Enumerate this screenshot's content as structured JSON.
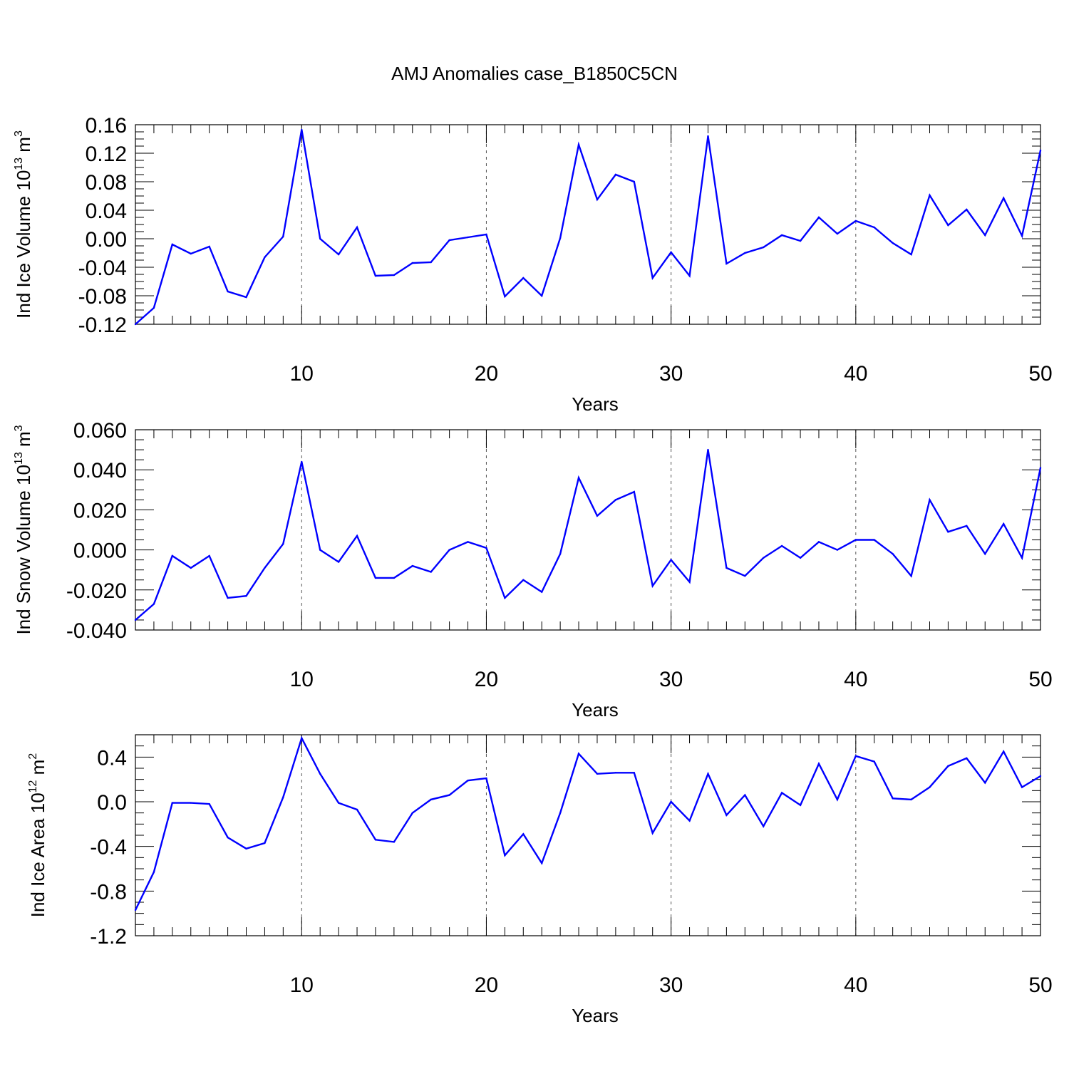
{
  "figure": {
    "title": "AMJ Anomalies case_B1850C5CN",
    "line_color": "#0000ff",
    "grid_color": "#555555"
  },
  "chart_data": [
    {
      "type": "line",
      "xlabel": "Years",
      "ylabel": {
        "prefix": "Ind Ice Volume 10",
        "exponent": "13",
        "unit": " m",
        "unit_exponent": "3"
      },
      "xlim": [
        1,
        50
      ],
      "ylim": [
        -0.12,
        0.16
      ],
      "yticks": [
        "0.16",
        "0.12",
        "0.08",
        "0.04",
        "0.00",
        "-0.04",
        "-0.08",
        "-0.12"
      ],
      "ytick_values": [
        0.16,
        0.12,
        0.08,
        0.04,
        0.0,
        -0.04,
        -0.08,
        -0.12
      ],
      "xticks": [
        "10",
        "20",
        "30",
        "40",
        "50"
      ],
      "xtick_values": [
        10,
        20,
        30,
        40,
        50
      ],
      "grid": "vertical-dashed",
      "x": [
        1,
        2,
        3,
        4,
        5,
        6,
        7,
        8,
        9,
        10,
        11,
        12,
        13,
        14,
        15,
        16,
        17,
        18,
        19,
        20,
        21,
        22,
        23,
        24,
        25,
        26,
        27,
        28,
        29,
        30,
        31,
        32,
        33,
        34,
        35,
        36,
        37,
        38,
        39,
        40,
        41,
        42,
        43,
        44,
        45,
        46,
        47,
        48,
        49,
        50
      ],
      "values": [
        -0.12,
        -0.097,
        -0.008,
        -0.021,
        -0.011,
        -0.074,
        -0.082,
        -0.026,
        0.003,
        0.153,
        0.0,
        -0.022,
        0.016,
        -0.052,
        -0.051,
        -0.034,
        -0.033,
        -0.002,
        0.002,
        0.006,
        -0.081,
        -0.055,
        -0.08,
        0.001,
        0.132,
        0.055,
        0.09,
        0.08,
        -0.055,
        -0.019,
        -0.052,
        0.144,
        -0.035,
        -0.02,
        -0.012,
        0.005,
        -0.003,
        0.03,
        0.007,
        0.025,
        0.016,
        -0.006,
        -0.022,
        0.061,
        0.019,
        0.041,
        0.005,
        0.057,
        0.004,
        0.124
      ]
    },
    {
      "type": "line",
      "xlabel": "Years",
      "ylabel": {
        "prefix": "Ind Snow Volume 10",
        "exponent": "13",
        "unit": " m",
        "unit_exponent": "3"
      },
      "xlim": [
        1,
        50
      ],
      "ylim": [
        -0.04,
        0.06
      ],
      "yticks": [
        "0.060",
        "0.040",
        "0.020",
        "0.000",
        "-0.020",
        "-0.040"
      ],
      "ytick_values": [
        0.06,
        0.04,
        0.02,
        0.0,
        -0.02,
        -0.04
      ],
      "xticks": [
        "10",
        "20",
        "30",
        "40",
        "50"
      ],
      "xtick_values": [
        10,
        20,
        30,
        40,
        50
      ],
      "grid": "vertical-dashed",
      "x": [
        1,
        2,
        3,
        4,
        5,
        6,
        7,
        8,
        9,
        10,
        11,
        12,
        13,
        14,
        15,
        16,
        17,
        18,
        19,
        20,
        21,
        22,
        23,
        24,
        25,
        26,
        27,
        28,
        29,
        30,
        31,
        32,
        33,
        34,
        35,
        36,
        37,
        38,
        39,
        40,
        41,
        42,
        43,
        44,
        45,
        46,
        47,
        48,
        49,
        50
      ],
      "values": [
        -0.035,
        -0.027,
        -0.003,
        -0.009,
        -0.003,
        -0.024,
        -0.023,
        -0.009,
        0.003,
        0.044,
        0.0,
        -0.006,
        0.007,
        -0.014,
        -0.014,
        -0.008,
        -0.011,
        0.0,
        0.004,
        0.001,
        -0.024,
        -0.015,
        -0.021,
        -0.002,
        0.036,
        0.017,
        0.025,
        0.029,
        -0.018,
        -0.005,
        -0.016,
        0.05,
        -0.009,
        -0.013,
        -0.004,
        0.002,
        -0.004,
        0.004,
        0.0,
        0.005,
        0.005,
        -0.002,
        -0.013,
        0.025,
        0.009,
        0.012,
        -0.002,
        0.013,
        -0.004,
        0.041
      ]
    },
    {
      "type": "line",
      "xlabel": "Years",
      "ylabel": {
        "prefix": "Ind Ice Area 10",
        "exponent": "12",
        "unit": " m",
        "unit_exponent": "2"
      },
      "xlim": [
        1,
        50
      ],
      "ylim": [
        -1.2,
        0.6
      ],
      "yticks": [
        "0.4",
        "0.0",
        "-0.4",
        "-0.8",
        "-1.2"
      ],
      "ytick_values": [
        0.4,
        0.0,
        -0.4,
        -0.8,
        -1.2
      ],
      "xticks": [
        "10",
        "20",
        "30",
        "40",
        "50"
      ],
      "xtick_values": [
        10,
        20,
        30,
        40,
        50
      ],
      "grid": "vertical-dashed",
      "x": [
        1,
        2,
        3,
        4,
        5,
        6,
        7,
        8,
        9,
        10,
        11,
        12,
        13,
        14,
        15,
        16,
        17,
        18,
        19,
        20,
        21,
        22,
        23,
        24,
        25,
        26,
        27,
        28,
        29,
        30,
        31,
        32,
        33,
        34,
        35,
        36,
        37,
        38,
        39,
        40,
        41,
        42,
        43,
        44,
        45,
        46,
        47,
        48,
        49,
        50
      ],
      "values": [
        -0.97,
        -0.63,
        -0.01,
        -0.01,
        -0.02,
        -0.32,
        -0.42,
        -0.37,
        0.04,
        0.57,
        0.25,
        -0.01,
        -0.07,
        -0.34,
        -0.36,
        -0.1,
        0.02,
        0.06,
        0.19,
        0.21,
        -0.48,
        -0.29,
        -0.55,
        -0.1,
        0.43,
        0.25,
        0.26,
        0.26,
        -0.28,
        0.0,
        -0.17,
        0.25,
        -0.12,
        0.06,
        -0.22,
        0.08,
        -0.03,
        0.34,
        0.02,
        0.41,
        0.36,
        0.03,
        0.02,
        0.13,
        0.32,
        0.39,
        0.17,
        0.45,
        0.13,
        0.23
      ]
    }
  ]
}
